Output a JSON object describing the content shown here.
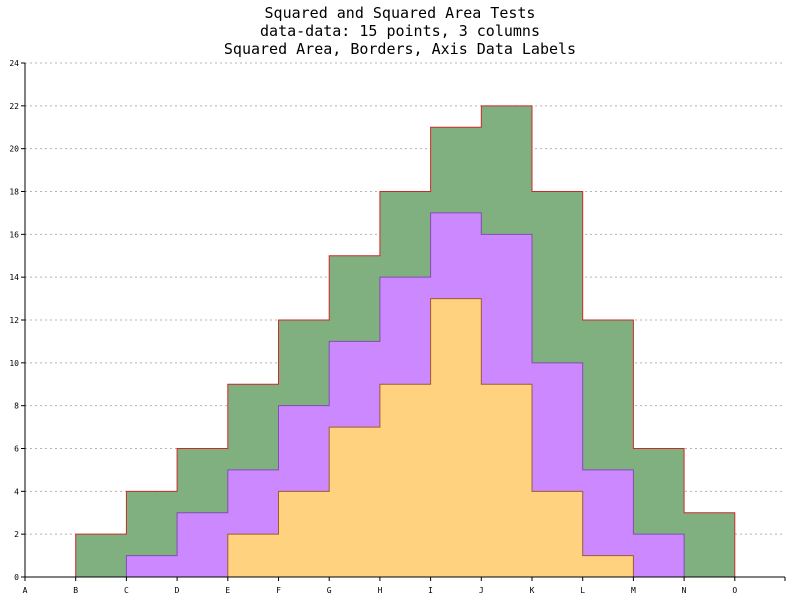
{
  "chart_data": {
    "type": "area",
    "style": "squared-stacked",
    "title": [
      "Squared and Squared Area Tests",
      "data-data: 15 points, 3 columns",
      "Squared Area, Borders, Axis Data Labels"
    ],
    "x": [
      "A",
      "B",
      "C",
      "D",
      "E",
      "F",
      "G",
      "H",
      "I",
      "J",
      "K",
      "L",
      "M",
      "N",
      "O"
    ],
    "y_ticks": [
      "0",
      "2",
      "4",
      "6",
      "8",
      "10",
      "12",
      "14",
      "16",
      "18",
      "20",
      "22",
      "24"
    ],
    "ylim": [
      0,
      24
    ],
    "grid": "horizontal-dashed",
    "series": [
      {
        "color": "#ffd27f",
        "border": "#a05a2c",
        "values": [
          0,
          0,
          0,
          0,
          2,
          4,
          7,
          9,
          13,
          9,
          4,
          1,
          0,
          0,
          0
        ]
      },
      {
        "color": "#cc88ff",
        "border": "#7f4fb0",
        "values": [
          0,
          0,
          1,
          3,
          5,
          8,
          11,
          14,
          17,
          16,
          10,
          5,
          2,
          0,
          0
        ]
      },
      {
        "color": "#80b080",
        "border": "#cc2a2a",
        "values": [
          0,
          2,
          4,
          6,
          9,
          12,
          15,
          18,
          21,
          22,
          18,
          12,
          6,
          3,
          0
        ]
      }
    ]
  }
}
